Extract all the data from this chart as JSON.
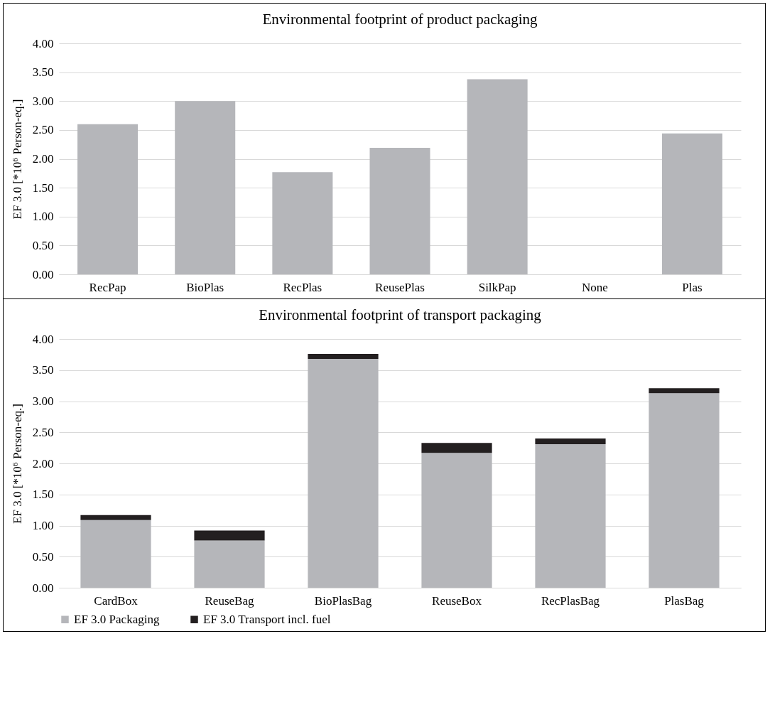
{
  "chart_data": [
    {
      "type": "bar",
      "title": "Environmental footprint of product packaging",
      "ylabel": "EF 3.0 [*10⁶ Person-eq.]",
      "categories": [
        "RecPap",
        "BioPlas",
        "RecPlas",
        "ReusePlas",
        "SilkPap",
        "None",
        "Plas"
      ],
      "values": [
        2.6,
        3.0,
        1.77,
        2.19,
        3.38,
        0,
        2.44
      ],
      "color": "#b5b6ba",
      "ylim": [
        0,
        4
      ],
      "yticks": [
        {
          "value": 0,
          "label": "0.00"
        },
        {
          "value": 0.5,
          "label": "0.50"
        },
        {
          "value": 1,
          "label": "1.00"
        },
        {
          "value": 1.5,
          "label": "1.50"
        },
        {
          "value": 2,
          "label": "2.00"
        },
        {
          "value": 2.5,
          "label": "2.50"
        },
        {
          "value": 3,
          "label": "3.00"
        },
        {
          "value": 3.5,
          "label": "3.50"
        },
        {
          "value": 4,
          "label": "4.00"
        }
      ],
      "grid": "y"
    },
    {
      "type": "bar",
      "title": "Environmental footprint of transport packaging",
      "ylabel": "EF 3.0 [*10⁶ Person-eq.]",
      "categories": [
        "CardBox",
        "ReuseBag",
        "BioPlasBag",
        "ReuseBox",
        "RecPlasBag",
        "PlasBag"
      ],
      "stacked": true,
      "series": [
        {
          "name": "EF 3.0 Packaging",
          "color": "#b5b6ba",
          "values": [
            1.09,
            0.76,
            3.68,
            2.17,
            2.31,
            3.13
          ]
        },
        {
          "name": "EF 3.0 Transport incl. fuel",
          "color": "#231f20",
          "values": [
            0.08,
            0.16,
            0.08,
            0.16,
            0.09,
            0.08
          ]
        }
      ],
      "ylim": [
        0,
        4
      ],
      "yticks": [
        {
          "value": 0,
          "label": "0.00"
        },
        {
          "value": 0.5,
          "label": "0.50"
        },
        {
          "value": 1,
          "label": "1.00"
        },
        {
          "value": 1.5,
          "label": "1.50"
        },
        {
          "value": 2,
          "label": "2.00"
        },
        {
          "value": 2.5,
          "label": "2.50"
        },
        {
          "value": 3,
          "label": "3.00"
        },
        {
          "value": 3.5,
          "label": "3.50"
        },
        {
          "value": 4,
          "label": "4.00"
        }
      ],
      "grid": "y",
      "legend": "bottom"
    }
  ]
}
